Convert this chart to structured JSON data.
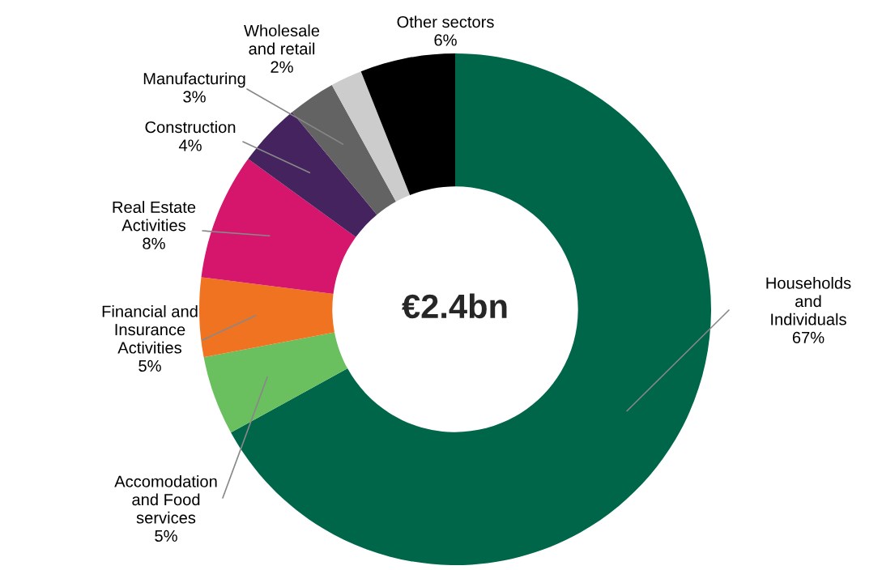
{
  "chart_data": {
    "type": "donut",
    "categories": [
      "Households\nand\nIndividuals",
      "Accomodation\nand Food\nservices",
      "Financial and\nInsurance\nActivities",
      "Real Estate\nActivities",
      "Construction",
      "Manufacturing",
      "Wholesale\nand retail",
      "Other sectors"
    ],
    "values": [
      67,
      5,
      5,
      8,
      4,
      3,
      2,
      6
    ],
    "colors": [
      "#00664a",
      "#6abf5e",
      "#f07322",
      "#d6156c",
      "#45235e",
      "#636363",
      "#cccccc",
      "#000000"
    ],
    "value_labels": [
      "67%",
      "5%",
      "5%",
      "8%",
      "4%",
      "3%",
      "2%",
      "6%"
    ],
    "annotations": [
      "€2.4bn"
    ],
    "legend": false
  }
}
